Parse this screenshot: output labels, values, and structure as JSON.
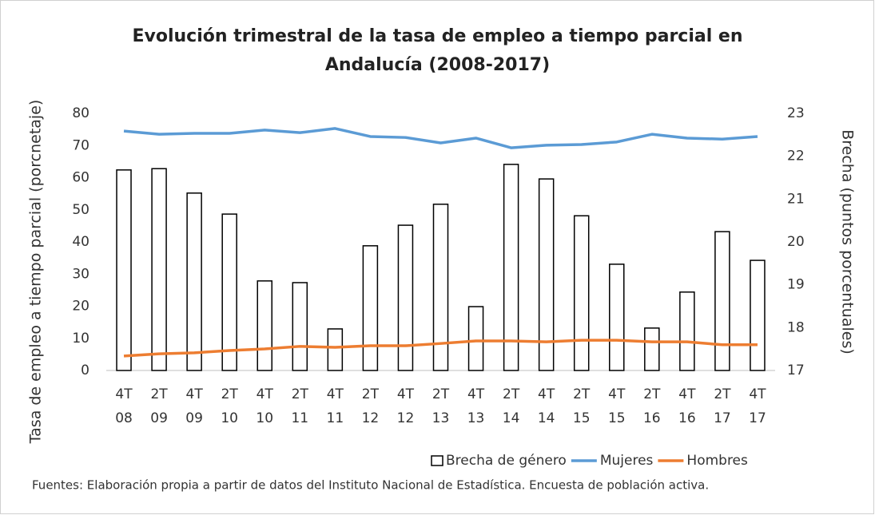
{
  "chart_data": {
    "type": "bar-line",
    "title": "Evolución trimestral de la tasa de empleo a tiempo parcial en Andalucía (2008-2017)",
    "ylabel": "Tasa de empleo a tiempo parcial (porcnetaje)",
    "y2label": "Brecha (puntos porcentuales)",
    "source": "Fuentes: Elaboración propia a partir de datos del Instituto Nacional de Estadística. Encuesta de población activa.",
    "categories": [
      [
        "4T",
        "08"
      ],
      [
        "2T",
        "09"
      ],
      [
        "4T",
        "09"
      ],
      [
        "2T",
        "10"
      ],
      [
        "4T",
        "10"
      ],
      [
        "2T",
        "11"
      ],
      [
        "4T",
        "11"
      ],
      [
        "2T",
        "12"
      ],
      [
        "4T",
        "12"
      ],
      [
        "2T",
        "13"
      ],
      [
        "4T",
        "13"
      ],
      [
        "2T",
        "14"
      ],
      [
        "4T",
        "14"
      ],
      [
        "2T",
        "15"
      ],
      [
        "4T",
        "15"
      ],
      [
        "2T",
        "16"
      ],
      [
        "4T",
        "16"
      ],
      [
        "2T",
        "17"
      ],
      [
        "4T",
        "17"
      ]
    ],
    "series": [
      {
        "name": "Brecha de género",
        "kind": "bar",
        "axis": "y2",
        "color": "#000000",
        "values": [
          21.68,
          21.71,
          21.14,
          20.65,
          19.09,
          19.05,
          17.97,
          19.91,
          20.39,
          20.88,
          18.49,
          21.81,
          21.47,
          20.61,
          19.48,
          17.99,
          18.83,
          20.24,
          19.57
        ]
      },
      {
        "name": "Mujeres",
        "kind": "line",
        "color": "#5b9bd5",
        "values": [
          74.5,
          73.5,
          73.8,
          73.8,
          74.8,
          74.0,
          75.3,
          72.8,
          72.5,
          70.8,
          72.3,
          69.3,
          70.1,
          70.3,
          71.1,
          73.5,
          72.3,
          72.0,
          72.8
        ]
      },
      {
        "name": "Hombres",
        "kind": "line",
        "color": "#ed7d31",
        "values": [
          4.5,
          5.2,
          5.5,
          6.2,
          6.7,
          7.5,
          7.2,
          7.7,
          7.7,
          8.4,
          9.2,
          9.2,
          8.9,
          9.4,
          9.4,
          8.9,
          8.9,
          8.0,
          8.0
        ]
      }
    ],
    "ylim": [
      0,
      80
    ],
    "yticks": [
      0,
      10,
      20,
      30,
      40,
      50,
      60,
      70,
      80
    ],
    "y2lim": [
      17,
      23
    ],
    "y2ticks": [
      17,
      18,
      19,
      20,
      21,
      22,
      23
    ],
    "grid": false,
    "legend": "bottom-right"
  }
}
